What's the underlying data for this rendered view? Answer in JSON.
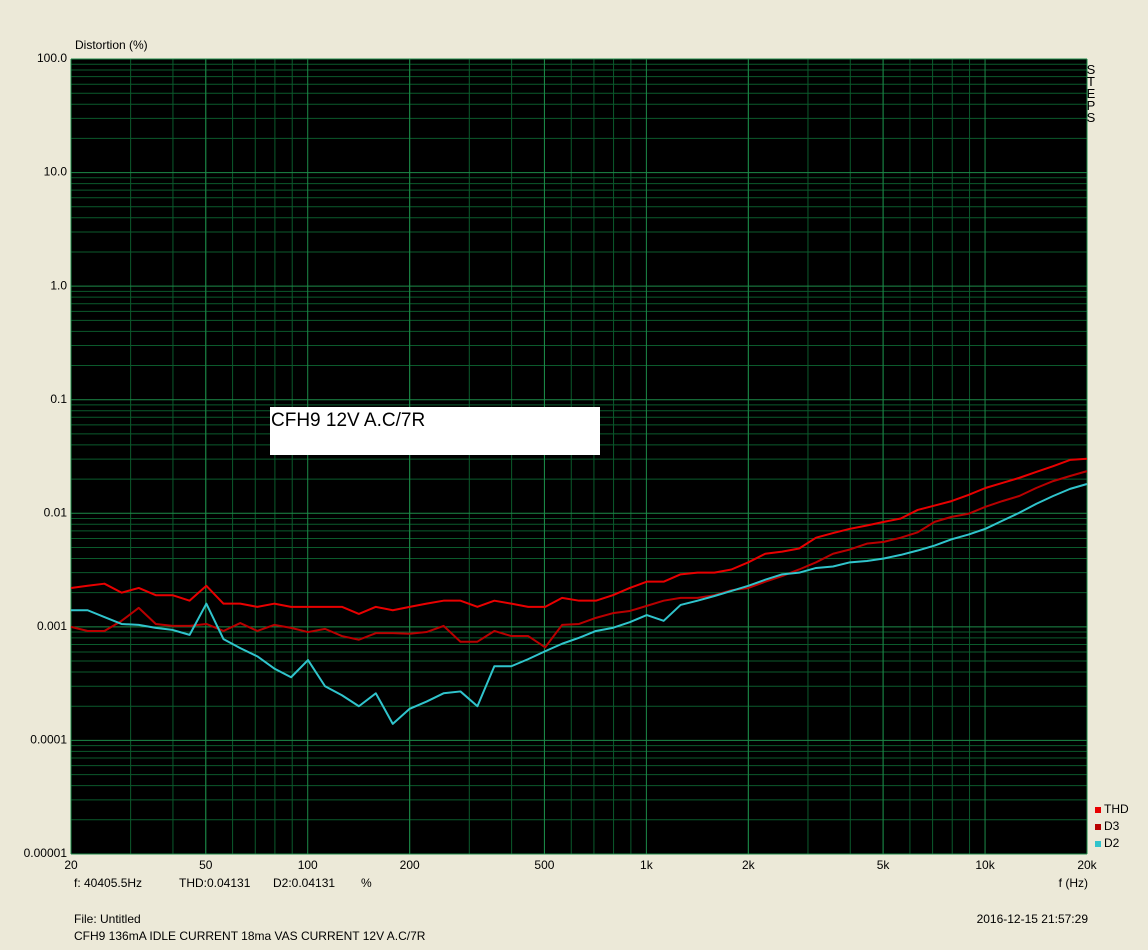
{
  "chart_data": {
    "type": "line",
    "y_label": "Distortion (%)",
    "x_label": "f (Hz)",
    "side_label": "STEPS",
    "annotation": "CFH9 12V A.C/7R",
    "status_frequency": "f: 40405.5Hz",
    "status_thd": "THD:0.04131",
    "status_d2": "D2:0.04131",
    "status_unit": "%",
    "file": "File: Untitled",
    "description": "CFH9 136mA IDLE CURRENT 18ma VAS CURRENT 12V A.C/7R",
    "timestamp": "2016-12-15 21:57:29",
    "xscale": "log",
    "yscale": "log",
    "grid": true,
    "legend": "lower right",
    "xlim": [
      20,
      20000
    ],
    "ylim": [
      1e-05,
      100
    ],
    "xticks": [
      20,
      50,
      100,
      200,
      500,
      {
        "value": 1000,
        "label": "1k"
      },
      {
        "value": 2000,
        "label": "2k"
      },
      {
        "value": 5000,
        "label": "5k"
      },
      {
        "value": 10000,
        "label": "10k"
      },
      {
        "value": 20000,
        "label": "20k"
      }
    ],
    "yticks": [
      {
        "value": 100,
        "label": "100.0"
      },
      {
        "value": 10,
        "label": "10.0"
      },
      {
        "value": 1,
        "label": "1.0"
      },
      0.1,
      0.01,
      0.001,
      0.0001,
      {
        "value": 1e-05,
        "label": "0.00001"
      }
    ],
    "x": [
      20,
      22.4,
      25.1,
      28.2,
      31.7,
      35.6,
      39.9,
      44.8,
      50.2,
      56.4,
      63.2,
      71,
      79.6,
      89.3,
      100.2,
      112.5,
      126.2,
      141.6,
      158.9,
      178.3,
      200,
      224.4,
      251.8,
      282.5,
      317,
      355.7,
      399.1,
      447.7,
      502.4,
      563.7,
      632.5,
      709.6,
      796.2,
      893.4,
      1002.4,
      1124.7,
      1261.9,
      1415.9,
      1588.7,
      1782.5,
      2000,
      2244,
      2518,
      2825,
      3170,
      3557,
      3991,
      4477,
      5024,
      5637,
      6325,
      7096,
      7962,
      8934,
      10024,
      11247,
      12619,
      14159,
      15887,
      17825,
      20000
    ],
    "series": [
      {
        "name": "THD",
        "color": "#e80000",
        "values": [
          0.0022,
          0.0023,
          0.0024,
          0.002,
          0.0022,
          0.0019,
          0.0019,
          0.0017,
          0.0023,
          0.0016,
          0.0016,
          0.0015,
          0.0016,
          0.0015,
          0.0015,
          0.0015,
          0.0015,
          0.0013,
          0.0015,
          0.0014,
          0.0015,
          0.0016,
          0.0017,
          0.0017,
          0.0015,
          0.0017,
          0.0016,
          0.0015,
          0.0015,
          0.0018,
          0.0017,
          0.0017,
          0.0019,
          0.0022,
          0.0025,
          0.0025,
          0.0029,
          0.003,
          0.003,
          0.0032,
          0.0037,
          0.0044,
          0.0046,
          0.0049,
          0.0061,
          0.0067,
          0.0073,
          0.0078,
          0.0084,
          0.009,
          0.0107,
          0.0117,
          0.0128,
          0.0145,
          0.0167,
          0.0185,
          0.0205,
          0.0231,
          0.026,
          0.0295,
          0.0302
        ]
      },
      {
        "name": "D3",
        "color": "#b80000",
        "values": [
          0.001,
          0.00092,
          0.00092,
          0.00113,
          0.00147,
          0.00106,
          0.00102,
          0.00102,
          0.00106,
          0.00092,
          0.00108,
          0.00092,
          0.00104,
          0.00098,
          0.0009,
          0.00096,
          0.00083,
          0.00077,
          0.00088,
          0.00088,
          0.00087,
          0.0009,
          0.00102,
          0.00074,
          0.00074,
          0.00092,
          0.00083,
          0.00083,
          0.00066,
          0.00104,
          0.00106,
          0.0012,
          0.00132,
          0.00138,
          0.00153,
          0.0017,
          0.0018,
          0.0018,
          0.0019,
          0.0021,
          0.0022,
          0.0025,
          0.0028,
          0.0032,
          0.0037,
          0.0044,
          0.0048,
          0.0054,
          0.0056,
          0.0061,
          0.0068,
          0.0084,
          0.0093,
          0.0099,
          0.0114,
          0.0128,
          0.0142,
          0.0167,
          0.0192,
          0.0213,
          0.0235
        ]
      },
      {
        "name": "D2",
        "color": "#30c4cc",
        "values": [
          0.0014,
          0.0014,
          0.00122,
          0.00106,
          0.00104,
          0.00098,
          0.00094,
          0.00085,
          0.0016,
          0.00078,
          0.00065,
          0.00055,
          0.00043,
          0.00036,
          0.00051,
          0.0003,
          0.00025,
          0.0002,
          0.00026,
          0.00014,
          0.00019,
          0.00022,
          0.00026,
          0.00027,
          0.0002,
          0.00045,
          0.00045,
          0.00052,
          0.00061,
          0.00071,
          0.0008,
          0.00092,
          0.00098,
          0.0011,
          0.00127,
          0.00113,
          0.00156,
          0.0017,
          0.00187,
          0.00207,
          0.0023,
          0.0026,
          0.0029,
          0.003,
          0.0033,
          0.0034,
          0.0037,
          0.0038,
          0.004,
          0.0043,
          0.0047,
          0.0052,
          0.0059,
          0.0065,
          0.0073,
          0.0086,
          0.0101,
          0.0121,
          0.0142,
          0.0164,
          0.0181
        ]
      }
    ]
  }
}
